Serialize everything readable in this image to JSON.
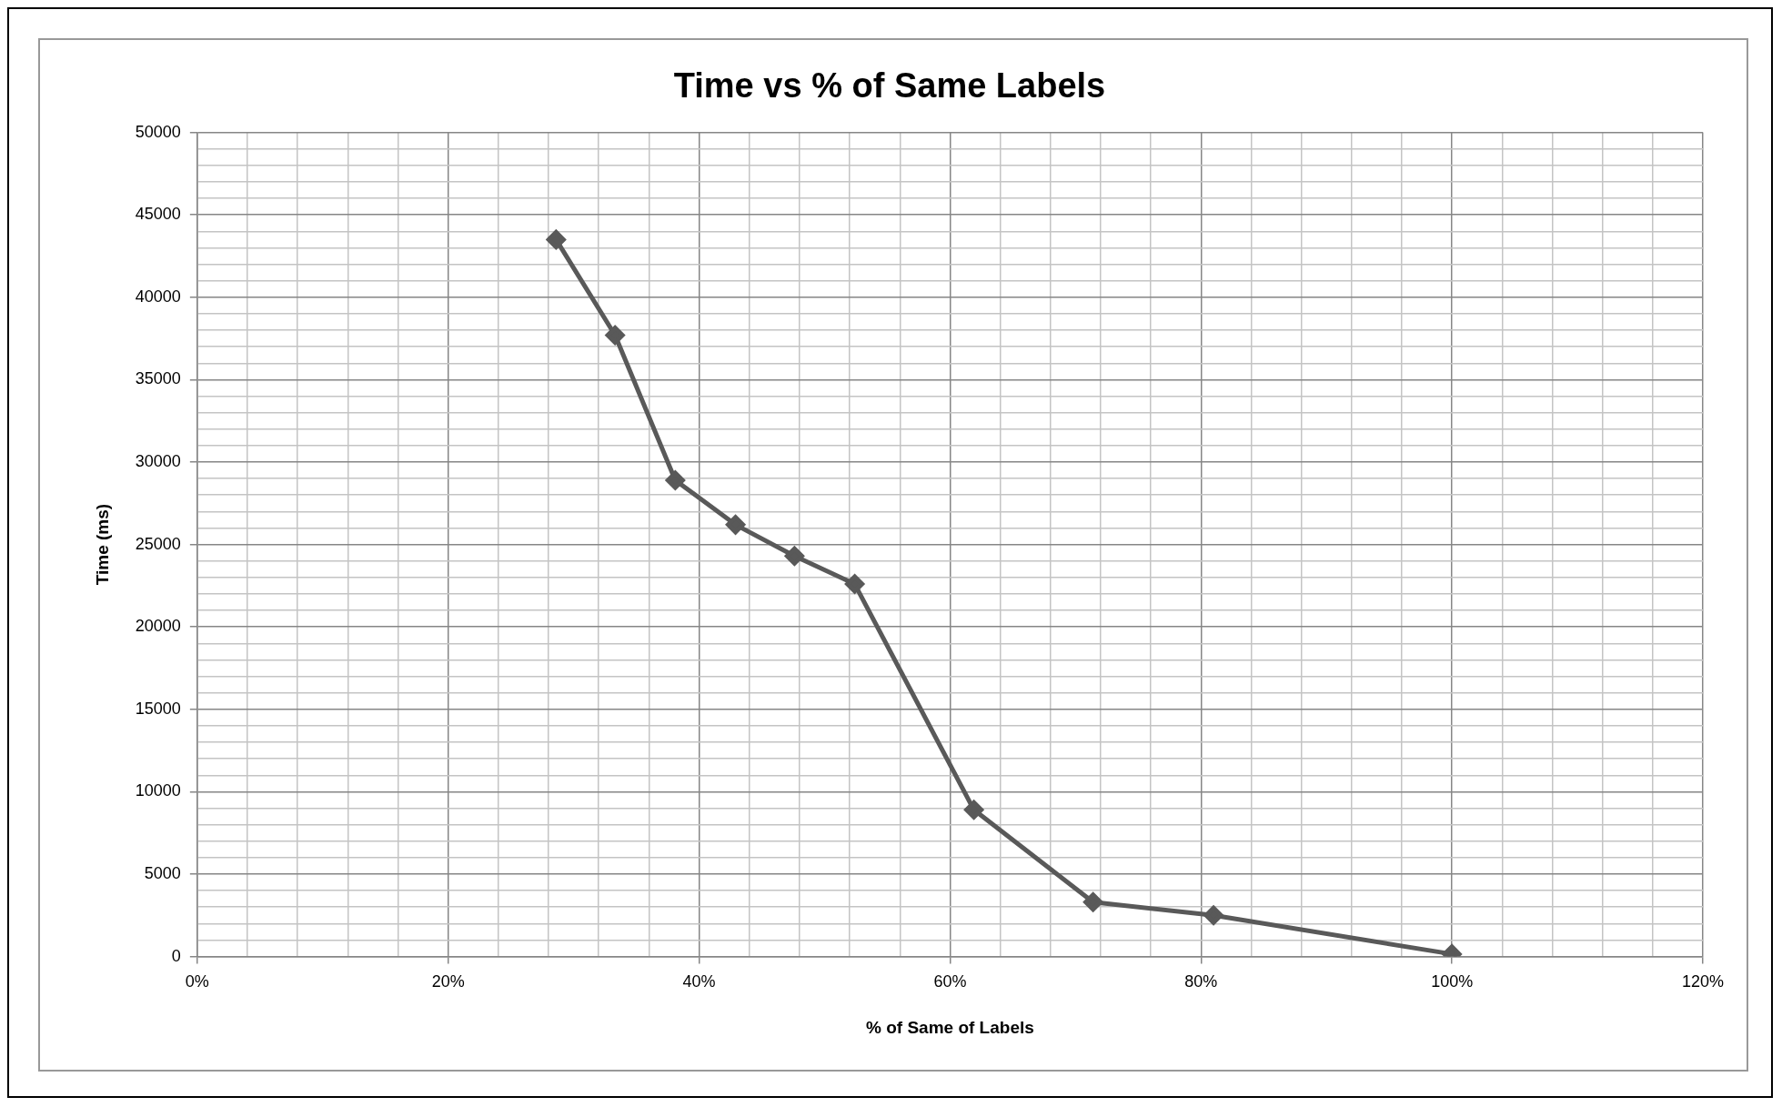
{
  "chart_data": {
    "type": "line",
    "title": "Time vs % of Same Labels",
    "xlabel": "% of Same of Labels",
    "ylabel": "Time (ms)",
    "x": [
      28.6,
      33.3,
      38.1,
      42.9,
      47.6,
      52.4,
      61.9,
      71.4,
      81.0,
      100
    ],
    "series": [
      {
        "color": "#595959",
        "values": [
          43500,
          37700,
          28900,
          26200,
          24300,
          22600,
          8900,
          3300,
          2500,
          150
        ]
      }
    ],
    "xlim": [
      0,
      120
    ],
    "xticks": [
      {
        "value": 0,
        "label": "0%"
      },
      {
        "value": 4,
        "label": null
      },
      {
        "value": 8,
        "label": null
      },
      {
        "value": 12,
        "label": null
      },
      {
        "value": 16,
        "label": null
      },
      {
        "value": 20,
        "label": "20%"
      },
      {
        "value": 24,
        "label": null
      },
      {
        "value": 28,
        "label": null
      },
      {
        "value": 32,
        "label": null
      },
      {
        "value": 36,
        "label": null
      },
      {
        "value": 40,
        "label": "40%"
      },
      {
        "value": 44,
        "label": null
      },
      {
        "value": 48,
        "label": null
      },
      {
        "value": 52,
        "label": null
      },
      {
        "value": 56,
        "label": null
      },
      {
        "value": 60,
        "label": "60%"
      },
      {
        "value": 64,
        "label": null
      },
      {
        "value": 68,
        "label": null
      },
      {
        "value": 72,
        "label": null
      },
      {
        "value": 76,
        "label": null
      },
      {
        "value": 80,
        "label": "80%"
      },
      {
        "value": 84,
        "label": null
      },
      {
        "value": 88,
        "label": null
      },
      {
        "value": 92,
        "label": null
      },
      {
        "value": 96,
        "label": null
      },
      {
        "value": 100,
        "label": "100%"
      },
      {
        "value": 104,
        "label": null
      },
      {
        "value": 108,
        "label": null
      },
      {
        "value": 112,
        "label": null
      },
      {
        "value": 116,
        "label": null
      },
      {
        "value": 120,
        "label": "120%"
      }
    ],
    "ylim": [
      0,
      50000
    ],
    "yticks": [
      0,
      {
        "value": 1000,
        "label": null
      },
      {
        "value": 2000,
        "label": null
      },
      {
        "value": 3000,
        "label": null
      },
      {
        "value": 4000,
        "label": null
      },
      5000,
      {
        "value": 6000,
        "label": null
      },
      {
        "value": 7000,
        "label": null
      },
      {
        "value": 8000,
        "label": null
      },
      {
        "value": 9000,
        "label": null
      },
      10000,
      {
        "value": 11000,
        "label": null
      },
      {
        "value": 12000,
        "label": null
      },
      {
        "value": 13000,
        "label": null
      },
      {
        "value": 14000,
        "label": null
      },
      15000,
      {
        "value": 16000,
        "label": null
      },
      {
        "value": 17000,
        "label": null
      },
      {
        "value": 18000,
        "label": null
      },
      {
        "value": 19000,
        "label": null
      },
      20000,
      {
        "value": 21000,
        "label": null
      },
      {
        "value": 22000,
        "label": null
      },
      {
        "value": 23000,
        "label": null
      },
      {
        "value": 24000,
        "label": null
      },
      25000,
      {
        "value": 26000,
        "label": null
      },
      {
        "value": 27000,
        "label": null
      },
      {
        "value": 28000,
        "label": null
      },
      {
        "value": 29000,
        "label": null
      },
      30000,
      {
        "value": 31000,
        "label": null
      },
      {
        "value": 32000,
        "label": null
      },
      {
        "value": 33000,
        "label": null
      },
      {
        "value": 34000,
        "label": null
      },
      35000,
      {
        "value": 36000,
        "label": null
      },
      {
        "value": 37000,
        "label": null
      },
      {
        "value": 38000,
        "label": null
      },
      {
        "value": 39000,
        "label": null
      },
      40000,
      {
        "value": 41000,
        "label": null
      },
      {
        "value": 42000,
        "label": null
      },
      {
        "value": 43000,
        "label": null
      },
      {
        "value": 44000,
        "label": null
      },
      45000,
      {
        "value": 46000,
        "label": null
      },
      {
        "value": 47000,
        "label": null
      },
      {
        "value": 48000,
        "label": null
      },
      {
        "value": 49000,
        "label": null
      },
      50000
    ],
    "grid": true,
    "legend": false,
    "marker": "diamond",
    "line_style": "solid"
  }
}
